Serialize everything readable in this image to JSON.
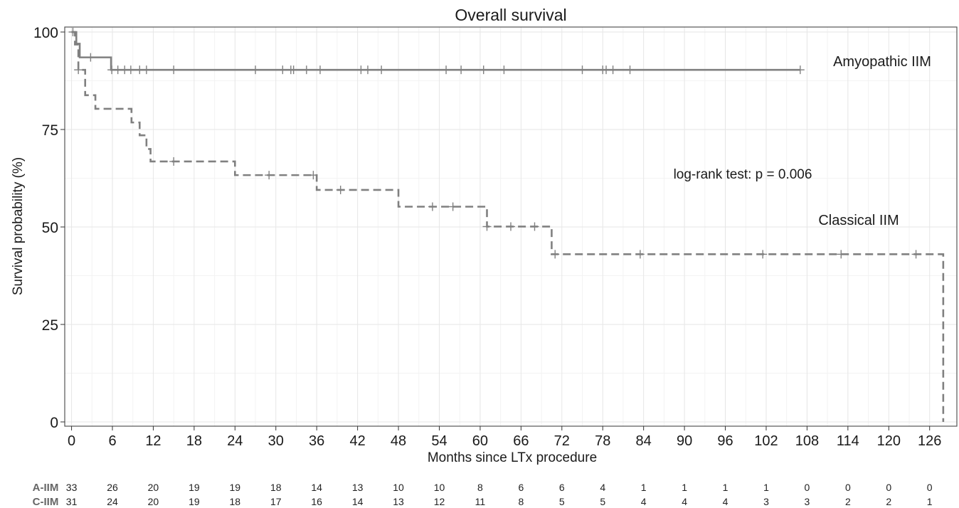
{
  "chart_data": {
    "type": "line",
    "title": "Overall survival",
    "xlabel": "Months since LTx procedure",
    "ylabel": "Survival probability (%)",
    "xlim": [
      -1,
      130
    ],
    "ylim": [
      0,
      100
    ],
    "x_ticks": [
      0,
      6,
      12,
      18,
      24,
      30,
      36,
      42,
      48,
      54,
      60,
      66,
      72,
      78,
      84,
      90,
      96,
      102,
      108,
      114,
      120,
      126
    ],
    "x_tick_labels": [
      "0",
      "6",
      "12",
      "18",
      "24",
      "30",
      "36",
      "42",
      "48",
      "54",
      "60",
      "66",
      "72",
      "78",
      "84",
      "90",
      "96",
      "102",
      "108",
      "114",
      "120",
      "126"
    ],
    "y_ticks": [
      0,
      25,
      50,
      75,
      100
    ],
    "y_tick_labels": [
      "0",
      "25",
      "50",
      "75",
      "100"
    ],
    "grid": true,
    "step": true,
    "annotation": "log-rank test: p = 0.006",
    "series": [
      {
        "name": "Amyopathic IIM",
        "color": "#808080",
        "dash": "solid",
        "steps": [
          [
            0,
            100
          ],
          [
            0.7,
            97
          ],
          [
            1.2,
            93.5
          ],
          [
            5.8,
            90.3
          ],
          [
            107,
            90.3
          ]
        ],
        "censors": [
          [
            0.2,
            100
          ],
          [
            2.8,
            93.5
          ],
          [
            5.9,
            90.3
          ],
          [
            6.8,
            90.3
          ],
          [
            7.8,
            90.3
          ],
          [
            8.7,
            90.3
          ],
          [
            10,
            90.3
          ],
          [
            11,
            90.3
          ],
          [
            15,
            90.3
          ],
          [
            27,
            90.3
          ],
          [
            31,
            90.3
          ],
          [
            32.2,
            90.3
          ],
          [
            32.6,
            90.3
          ],
          [
            34.5,
            90.3
          ],
          [
            36.5,
            90.3
          ],
          [
            42.5,
            90.3
          ],
          [
            43.5,
            90.3
          ],
          [
            45.5,
            90.3
          ],
          [
            55,
            90.3
          ],
          [
            57.2,
            90.3
          ],
          [
            60.5,
            90.3
          ],
          [
            63.5,
            90.3
          ],
          [
            75,
            90.3
          ],
          [
            78,
            90.3
          ],
          [
            78.5,
            90.3
          ],
          [
            79.5,
            90.3
          ],
          [
            82,
            90.3
          ],
          [
            107,
            90.3
          ]
        ]
      },
      {
        "name": "Classical IIM",
        "color": "#808080",
        "dash": "dashed",
        "steps": [
          [
            0,
            100
          ],
          [
            0.5,
            96.8
          ],
          [
            1,
            90.3
          ],
          [
            2,
            83.8
          ],
          [
            3.5,
            80.3
          ],
          [
            8.8,
            76.8
          ],
          [
            10,
            73.5
          ],
          [
            11,
            70
          ],
          [
            11.6,
            66.8
          ],
          [
            24,
            63.3
          ],
          [
            36,
            59.5
          ],
          [
            48,
            55.2
          ],
          [
            61,
            50.1
          ],
          [
            70.5,
            43
          ],
          [
            128,
            43
          ],
          [
            128,
            0
          ]
        ],
        "censors": [
          [
            1,
            90.3
          ],
          [
            15,
            66.8
          ],
          [
            29,
            63.3
          ],
          [
            35.5,
            63.3
          ],
          [
            39.5,
            59.5
          ],
          [
            53,
            55.2
          ],
          [
            56,
            55.2
          ],
          [
            61,
            50.1
          ],
          [
            64.5,
            50.1
          ],
          [
            68,
            50.1
          ],
          [
            71,
            43
          ],
          [
            83.5,
            43
          ],
          [
            101.5,
            43
          ],
          [
            113,
            43
          ],
          [
            124,
            43
          ]
        ]
      }
    ],
    "risk_table": {
      "rows": [
        {
          "label": "A-IIM",
          "values": [
            "33",
            "26",
            "20",
            "19",
            "19",
            "18",
            "14",
            "13",
            "10",
            "10",
            "8",
            "6",
            "6",
            "4",
            "1",
            "1",
            "1",
            "1",
            "0",
            "0",
            "0",
            "0"
          ]
        },
        {
          "label": "C-IIM",
          "values": [
            "31",
            "24",
            "20",
            "19",
            "18",
            "17",
            "16",
            "14",
            "13",
            "12",
            "11",
            "8",
            "5",
            "5",
            "4",
            "4",
            "4",
            "3",
            "3",
            "2",
            "2",
            "1"
          ]
        }
      ]
    }
  }
}
